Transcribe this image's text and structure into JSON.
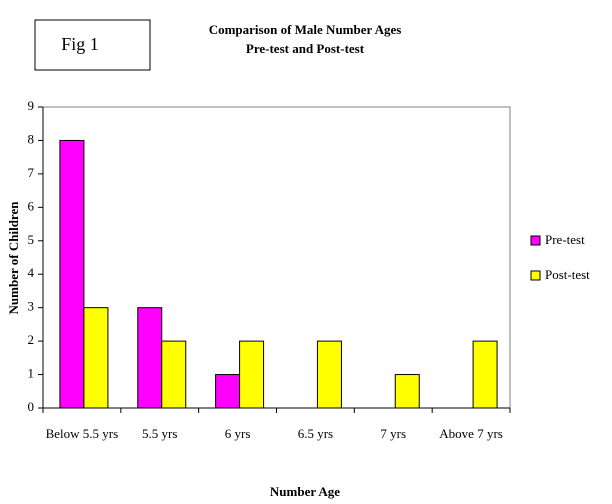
{
  "chart_data": {
    "type": "bar",
    "title": "Comparison of Male Number Ages",
    "subtitle": "Pre-test and Post-test",
    "annotation": "Fig 1",
    "x_label": "Number Age",
    "y_label": "Number of Children",
    "categories": [
      "Below 5.5 yrs",
      "5.5 yrs",
      "6 yrs",
      "6.5 yrs",
      "7 yrs",
      "Above 7 yrs"
    ],
    "series": [
      {
        "name": "Pre-test",
        "color": "#ff00ff",
        "values": [
          8,
          3,
          1,
          0,
          0,
          0
        ]
      },
      {
        "name": "Post-test",
        "color": "#ffff00",
        "values": [
          3,
          2,
          2,
          2,
          1,
          2
        ]
      }
    ],
    "ylim": [
      0,
      9
    ],
    "yticks": [
      0,
      1,
      2,
      3,
      4,
      5,
      6,
      7,
      8,
      9
    ],
    "legend": "right"
  }
}
